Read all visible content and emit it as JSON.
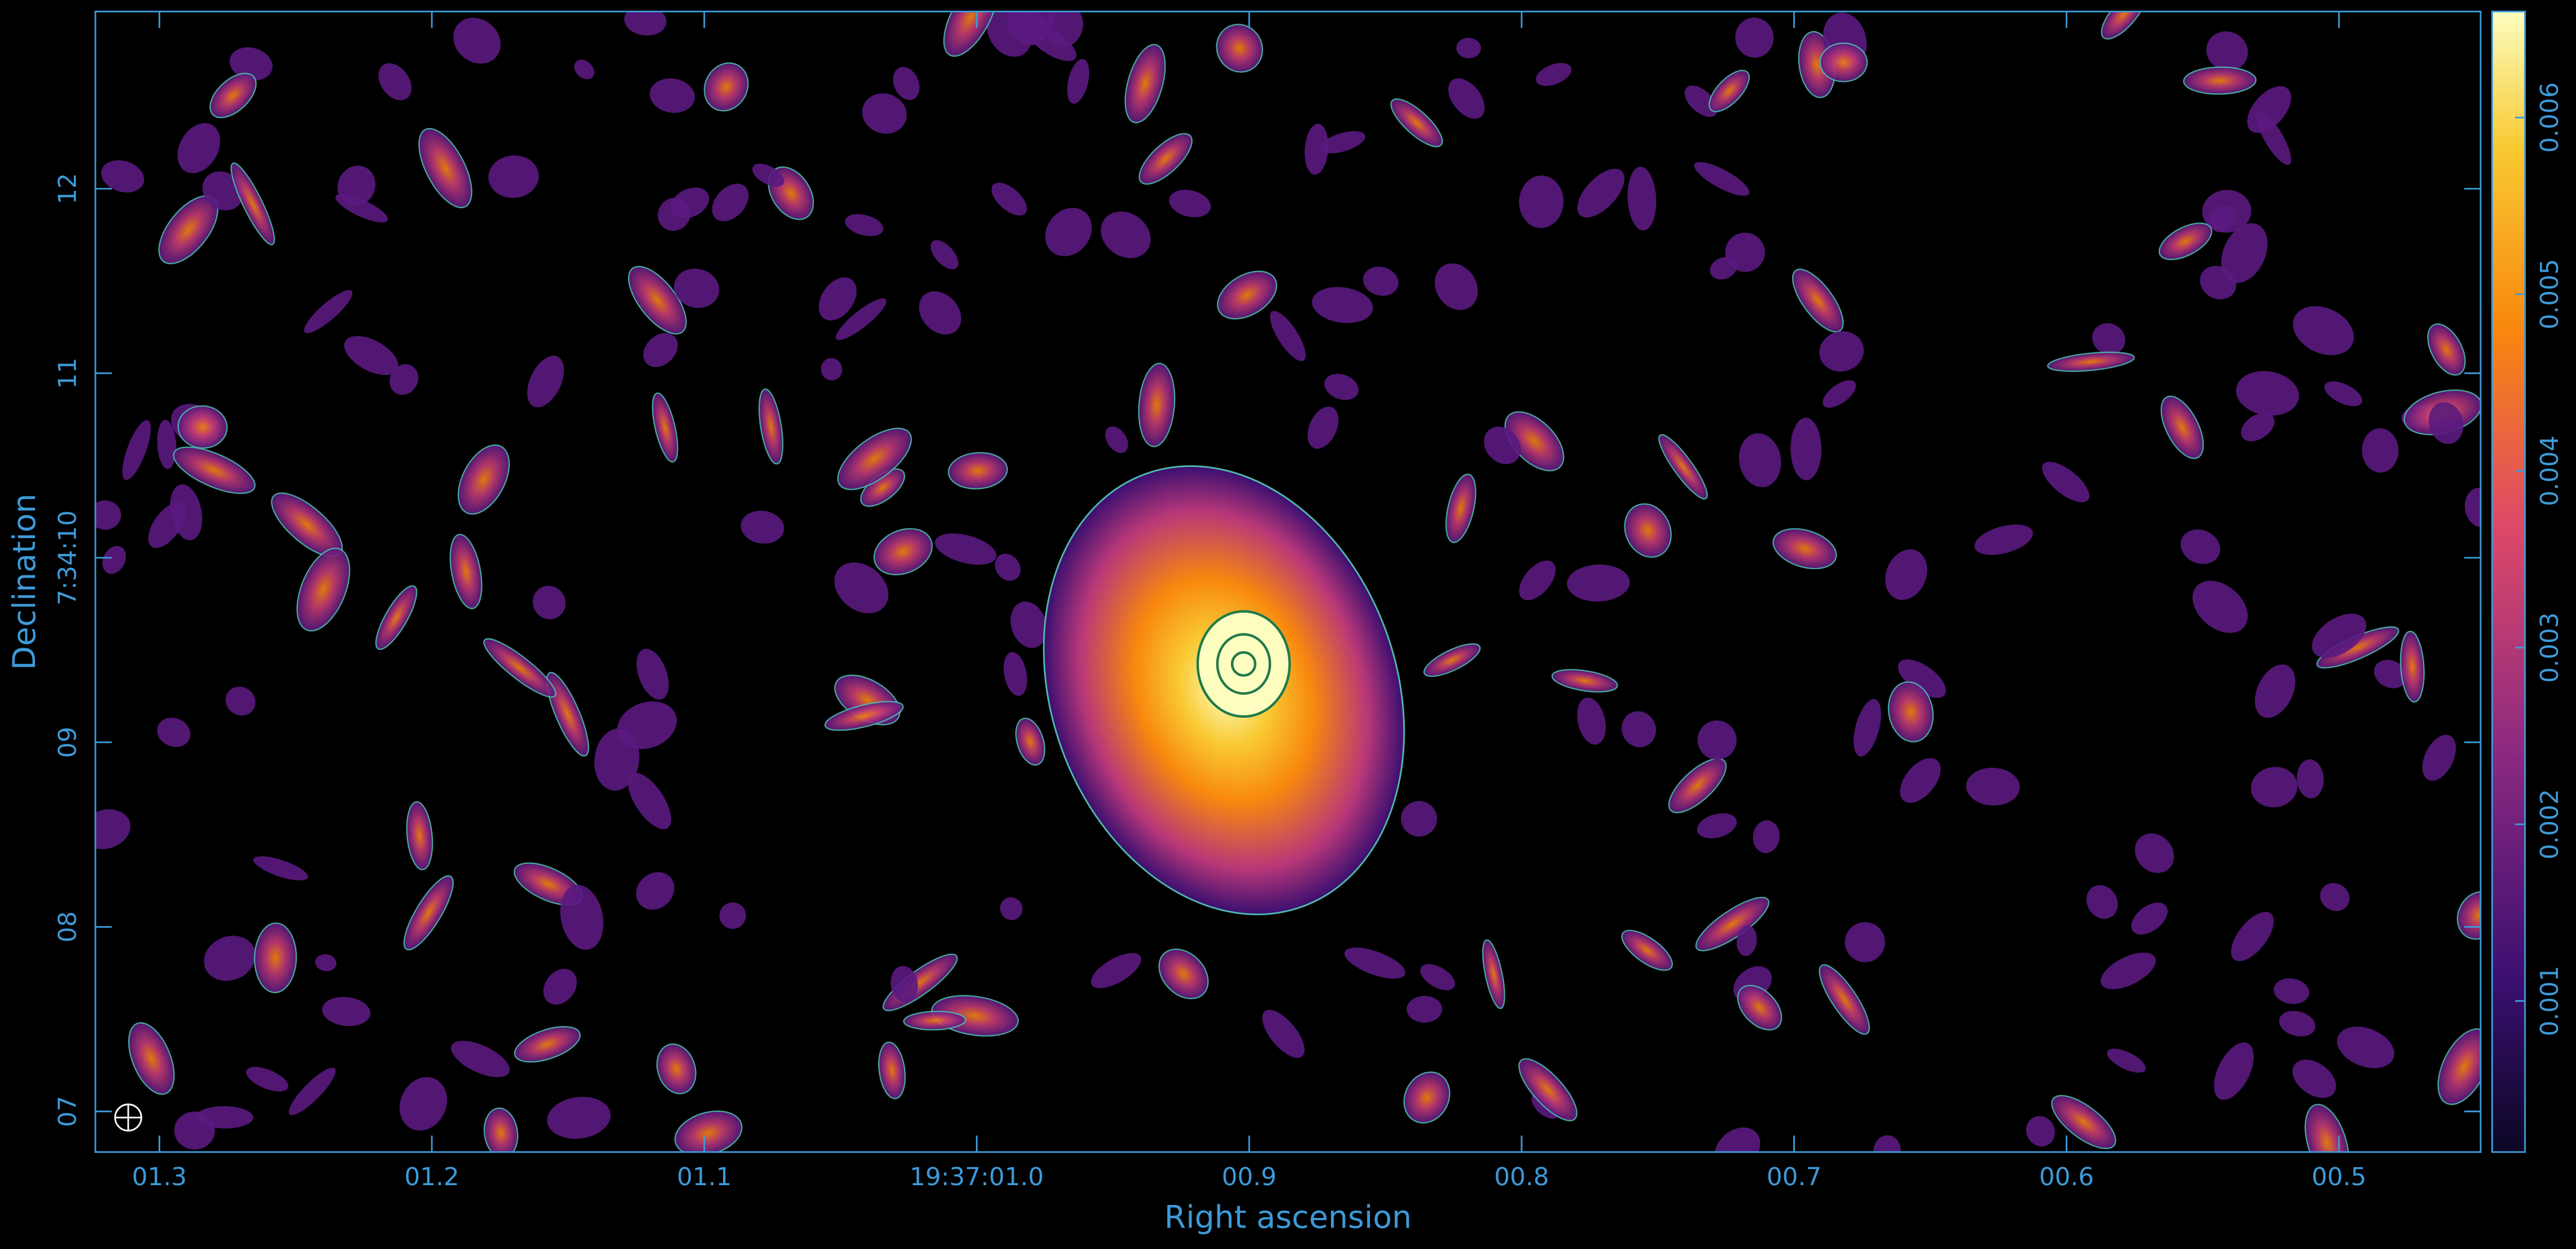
{
  "chart_data": {
    "type": "image",
    "xlabel": "Right ascension",
    "ylabel": "Declination",
    "xlim": [
      1.3235,
      0.448
    ],
    "xticks": [
      {
        "value": 1.3,
        "label": "01.3"
      },
      {
        "value": 1.2,
        "label": "01.2"
      },
      {
        "value": 1.1,
        "label": "01.1"
      },
      {
        "value": 1.0,
        "label": "19:37:01.0"
      },
      {
        "value": 0.9,
        "label": "00.9"
      },
      {
        "value": 0.8,
        "label": "00.8"
      },
      {
        "value": 0.7,
        "label": "00.7"
      },
      {
        "value": 0.6,
        "label": "00.6"
      },
      {
        "value": 0.5,
        "label": "00.5"
      }
    ],
    "ylim": [
      6.78,
      12.96
    ],
    "yticks": [
      {
        "value": 7,
        "label": "07"
      },
      {
        "value": 8,
        "label": "08"
      },
      {
        "value": 9,
        "label": "09"
      },
      {
        "value": 10,
        "label": "7:34:10"
      },
      {
        "value": 11,
        "label": "11"
      },
      {
        "value": 12,
        "label": "12"
      }
    ],
    "colorbar": {
      "lim": [
        0.000145,
        0.0066
      ],
      "ticks": [
        0.001,
        0.002,
        0.003,
        0.004,
        0.005,
        0.006
      ]
    }
  }
}
